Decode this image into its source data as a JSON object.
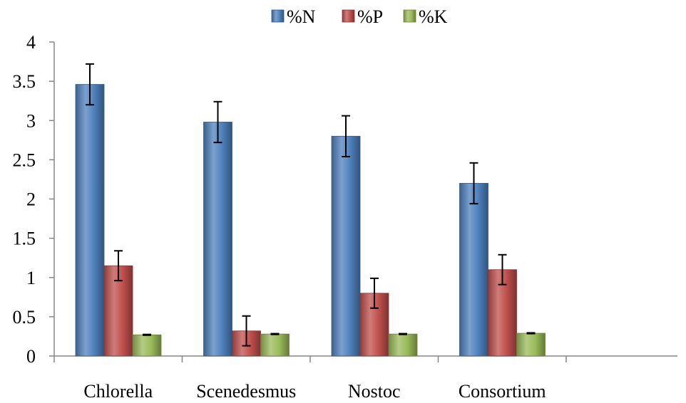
{
  "chart_data": {
    "type": "bar",
    "title": "",
    "xlabel": "",
    "ylabel": "",
    "categories": [
      "Chlorella",
      "Scenedesmus",
      "Nostoc",
      "Consortium"
    ],
    "extra_empty_category_slots": 1,
    "ylim": [
      0,
      4
    ],
    "yticks": [
      "0",
      "0.5",
      "1",
      "1.5",
      "2",
      "2.5",
      "3",
      "3.5",
      "4"
    ],
    "ytick_values": [
      0,
      0.5,
      1,
      1.5,
      2,
      2.5,
      3,
      3.5,
      4
    ],
    "grid": false,
    "legend_position": "top-center",
    "series": [
      {
        "name": "%N",
        "color": "#4f81bd",
        "values": [
          3.46,
          2.98,
          2.8,
          2.2
        ],
        "errors": [
          0.26,
          0.26,
          0.26,
          0.26
        ]
      },
      {
        "name": "%P",
        "color": "#c0504d",
        "values": [
          1.15,
          0.32,
          0.8,
          1.1
        ],
        "errors": [
          0.19,
          0.19,
          0.19,
          0.19
        ]
      },
      {
        "name": "%K",
        "color": "#9bbb59",
        "values": [
          0.27,
          0.28,
          0.28,
          0.29
        ],
        "errors": [
          0.005,
          0.005,
          0.005,
          0.005
        ]
      }
    ]
  }
}
